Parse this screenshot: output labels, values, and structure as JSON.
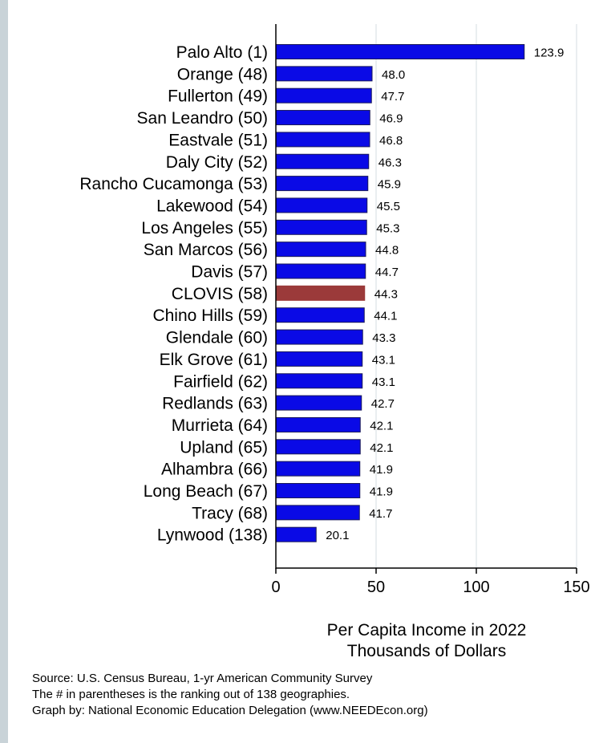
{
  "chart_data": {
    "type": "bar",
    "orientation": "horizontal",
    "categories": [
      "Palo Alto  (1)",
      "Orange (48)",
      "Fullerton (49)",
      "San Leandro (50)",
      "Eastvale (51)",
      "Daly City (52)",
      "Rancho Cucamonga (53)",
      "Lakewood (54)",
      "Los Angeles (55)",
      "San Marcos (56)",
      "Davis (57)",
      "CLOVIS (58)",
      "Chino Hills (59)",
      "Glendale (60)",
      "Elk Grove (61)",
      "Fairfield (62)",
      "Redlands (63)",
      "Murrieta (64)",
      "Upland (65)",
      "Alhambra (66)",
      "Long Beach (67)",
      "Tracy (68)",
      "Lynwood (138)"
    ],
    "values": [
      123.9,
      48.0,
      47.7,
      46.9,
      46.8,
      46.3,
      45.9,
      45.5,
      45.3,
      44.8,
      44.7,
      44.3,
      44.1,
      43.3,
      43.1,
      43.1,
      42.7,
      42.1,
      42.1,
      41.9,
      41.9,
      41.7,
      20.1
    ],
    "value_labels": [
      "123.9",
      "48.0",
      "47.7",
      "46.9",
      "46.8",
      "46.3",
      "45.9",
      "45.5",
      "45.3",
      "44.8",
      "44.7",
      "44.3",
      "44.1",
      "43.3",
      "43.1",
      "43.1",
      "42.7",
      "42.1",
      "42.1",
      "41.9",
      "41.9",
      "41.7",
      "20.1"
    ],
    "highlight": "CLOVIS (58)",
    "colors": {
      "bar": "#0a0ae6",
      "bar_edge": "#1a1a5a",
      "highlight": "#9b3a3a",
      "grid": "#eaeef0"
    },
    "xlabel": [
      "Per Capita Income in 2022",
      "Thousands of Dollars"
    ],
    "xticks": [
      0,
      50,
      100,
      150
    ],
    "xtick_labels": [
      "0",
      "50",
      "100",
      "150"
    ],
    "xlim": [
      0,
      150
    ],
    "grid": true,
    "legend": "none"
  },
  "notes": [
    "Source: U.S. Census Bureau, 1-yr American Community Survey",
    "The # in parentheses is the ranking out of 138 geographies.",
    "Graph by: National Economic Education Delegation (www.NEEDEcon.org)"
  ]
}
